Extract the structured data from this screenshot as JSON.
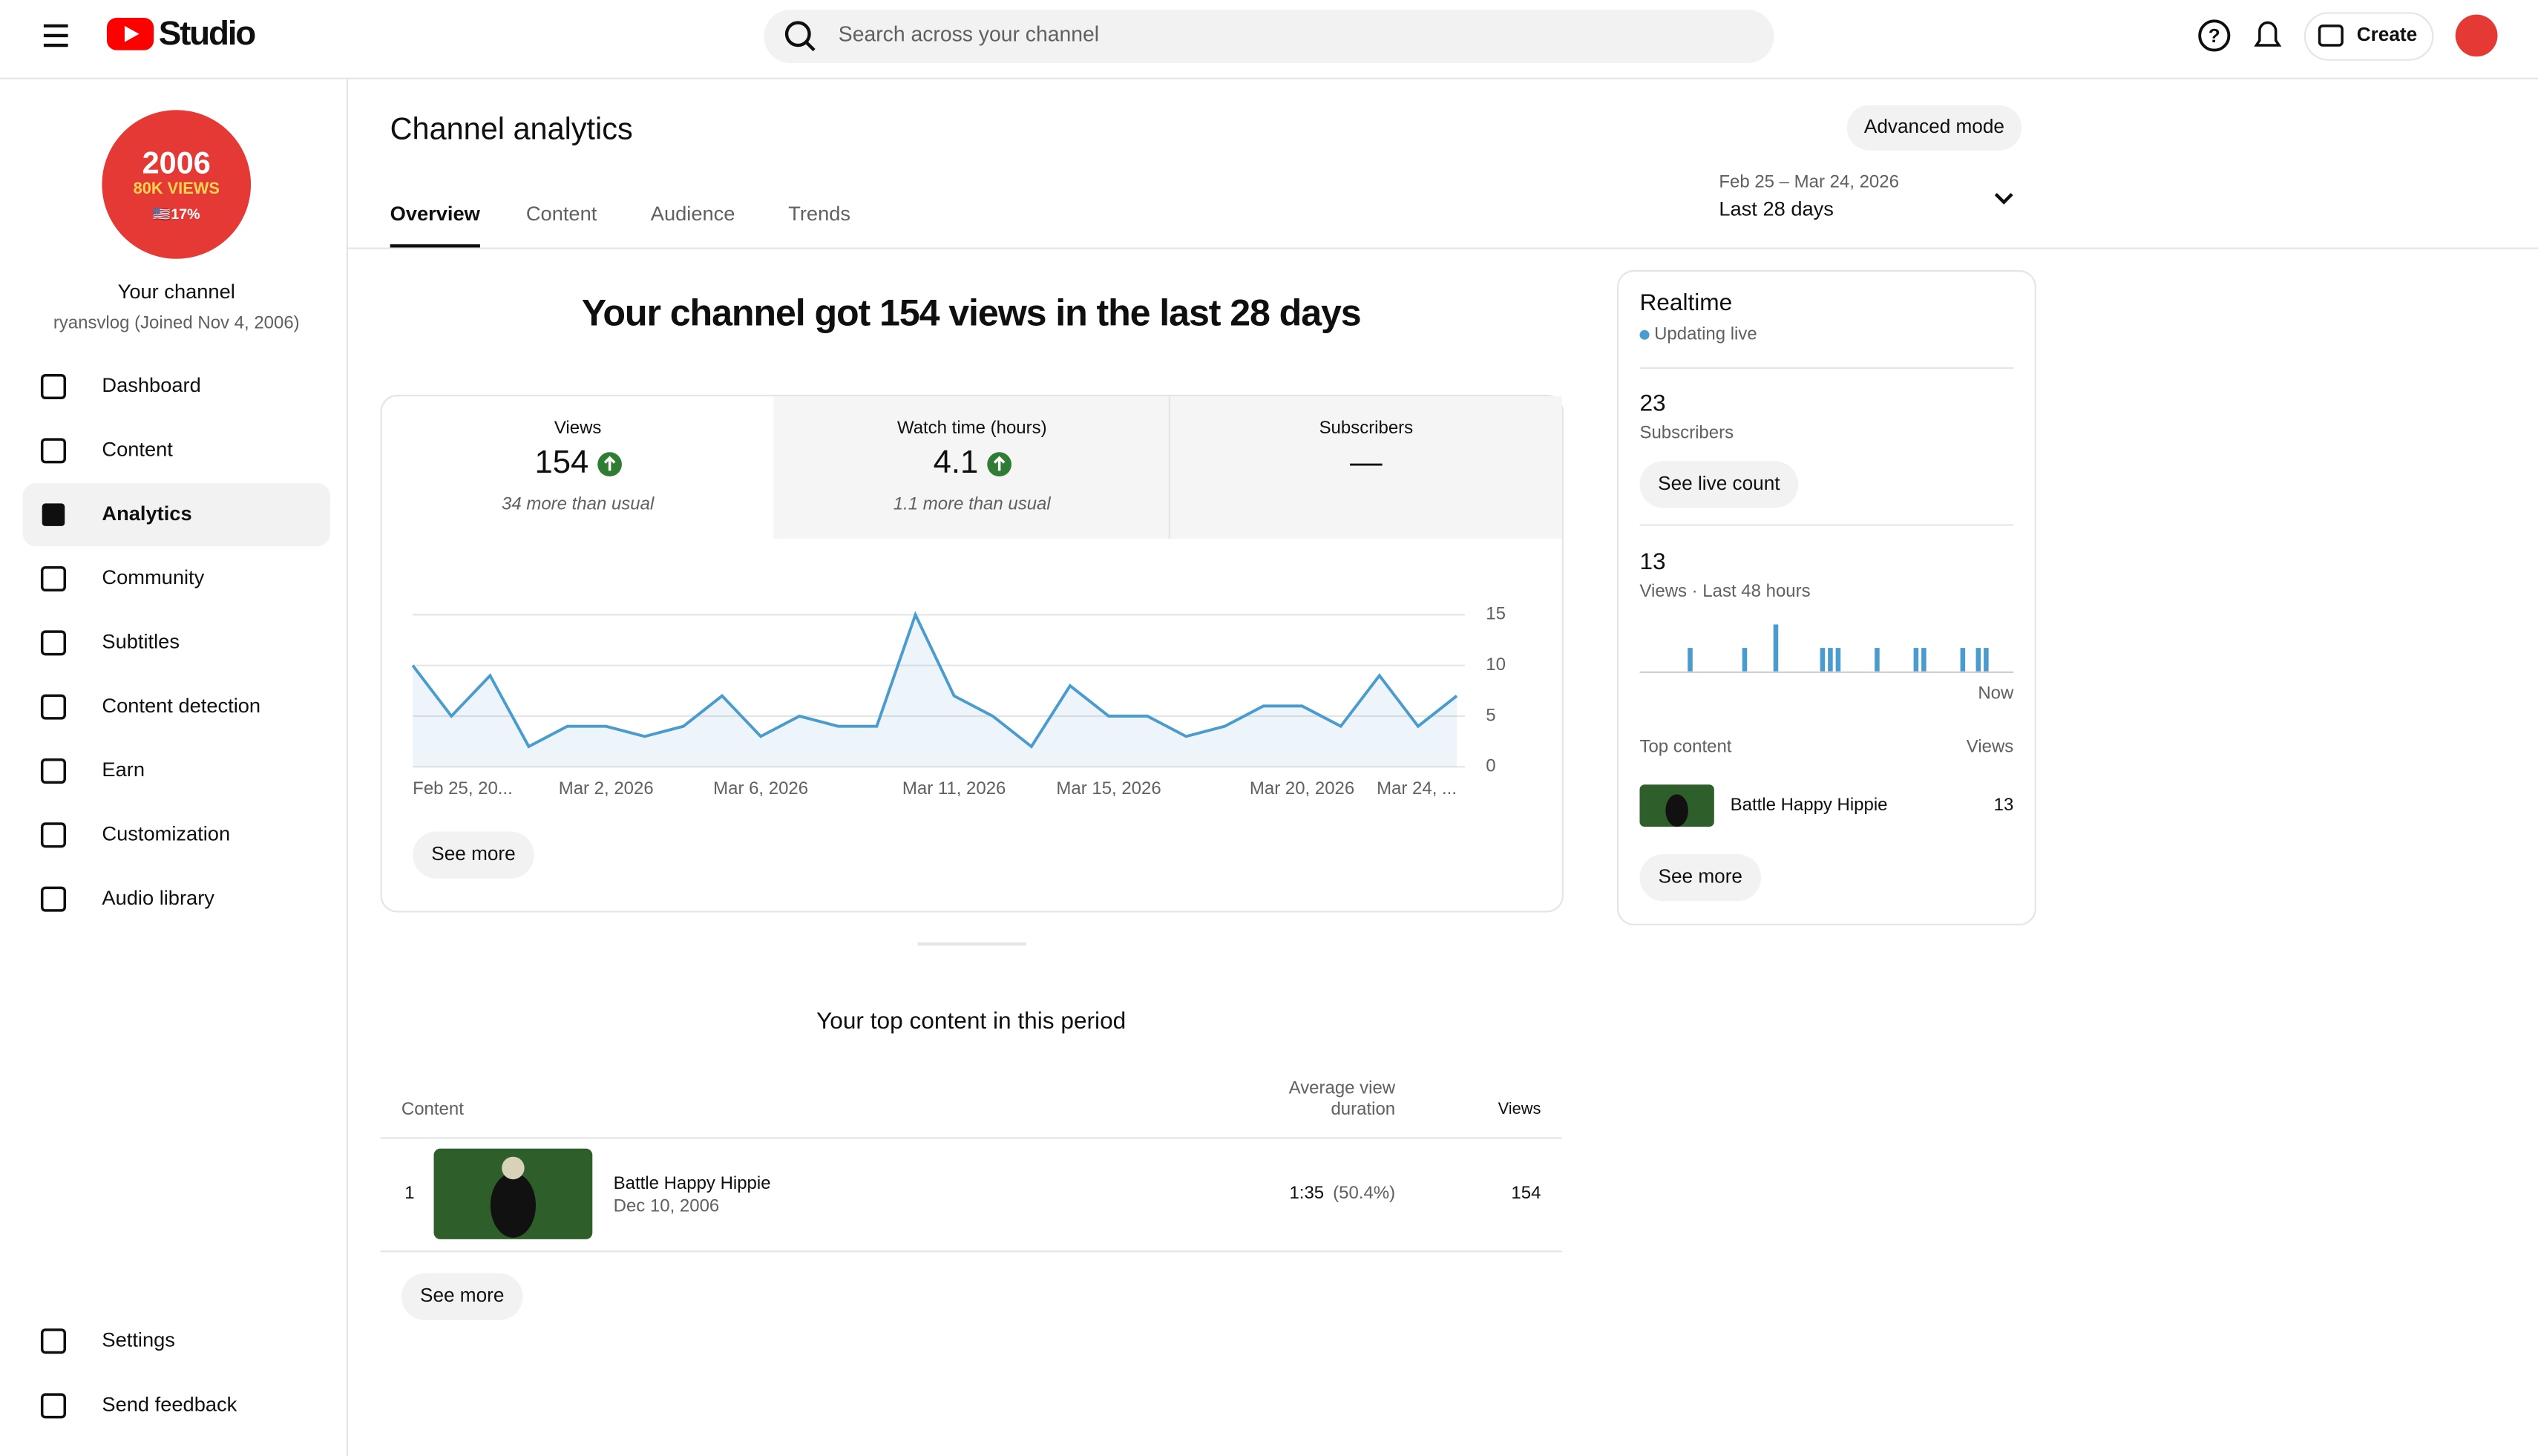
{
  "header": {
    "logo": "Studio",
    "search_placeholder": "Search across your channel",
    "create": "Create"
  },
  "sidebar": {
    "avatar_lines": [
      "2006",
      "80K VIEWS",
      "🇺🇸17%"
    ],
    "channel_title": "Your channel",
    "channel_handle": "ryansvlog (Joined Nov 4, 2006)",
    "nav": [
      "Dashboard",
      "Content",
      "Analytics",
      "Community",
      "Subtitles",
      "Content detection",
      "Earn",
      "Customization",
      "Audio library"
    ],
    "active_nav": 2,
    "footer_nav": [
      "Settings",
      "Send feedback"
    ]
  },
  "page": {
    "title": "Channel analytics",
    "advanced_button": "Advanced mode",
    "tabs": [
      "Overview",
      "Content",
      "Audience",
      "Trends"
    ],
    "active_tab": 0,
    "date_range": "Feb 25 – Mar 24, 2026",
    "period": "Last 28 days"
  },
  "summary": {
    "headline": "Your channel got 154 views in the last 28 days",
    "metrics": [
      {
        "label": "Views",
        "value": 154,
        "note": "34 more than usual",
        "up": true
      },
      {
        "label": "Watch time (hours)",
        "value": 4.1,
        "note": "1.1 more than usual",
        "up": true
      },
      {
        "label": "Subscribers",
        "value": "—"
      }
    ],
    "see_more": "See more"
  },
  "chart_data": {
    "type": "line",
    "categories": [
      "Feb 25, 20...",
      null,
      null,
      null,
      null,
      "Mar 2, 2026",
      null,
      null,
      null,
      "Mar 6, 2026",
      null,
      null,
      null,
      null,
      "Mar 11, 2026",
      null,
      null,
      null,
      "Mar 15, 2026",
      null,
      null,
      null,
      null,
      "Mar 20, 2026",
      null,
      null,
      null,
      "Mar 24, ..."
    ],
    "values": [
      10,
      5,
      9,
      2,
      4,
      4,
      3,
      4,
      7,
      3,
      5,
      4,
      4,
      15,
      7,
      5,
      2,
      8,
      5,
      5,
      3,
      4,
      6,
      6,
      4,
      9,
      4,
      7
    ],
    "color": "#4a9ccf",
    "ylim": [
      0,
      15
    ],
    "yticks": [
      0,
      5,
      10,
      15
    ],
    "grid": true
  },
  "top_content": {
    "title": "Your top content in this period",
    "columns": {
      "content": "Content",
      "duration": [
        "Average view",
        "duration"
      ],
      "views": "Views"
    },
    "rows": [
      {
        "rank": 1,
        "title": "Battle Happy Hippie",
        "date": "Dec 10, 2006",
        "duration": "1:35",
        "percent": "(50.4%)",
        "views": 154
      }
    ],
    "see_more": "See more"
  },
  "realtime": {
    "title": "Realtime",
    "status": "Updating live",
    "subscribers": 23,
    "subscribers_label": "Subscribers",
    "live_button": "See live count",
    "views": 13,
    "views_label": "Views · Last 48 hours",
    "now_label": "Now",
    "color": "#4a9ccf",
    "hourly_views": [
      0,
      0,
      0,
      0,
      0,
      0,
      1,
      0,
      0,
      0,
      0,
      0,
      0,
      1,
      0,
      0,
      0,
      2,
      0,
      0,
      0,
      0,
      0,
      1,
      1,
      1,
      0,
      0,
      0,
      0,
      1,
      0,
      0,
      0,
      0,
      1,
      1,
      0,
      0,
      0,
      0,
      1,
      0,
      1,
      1,
      0,
      0,
      0
    ],
    "top_content_label": "Top content",
    "views_column": "Views",
    "top": [
      {
        "title": "Battle Happy Hippie",
        "views": 13
      }
    ],
    "see_more": "See more"
  }
}
